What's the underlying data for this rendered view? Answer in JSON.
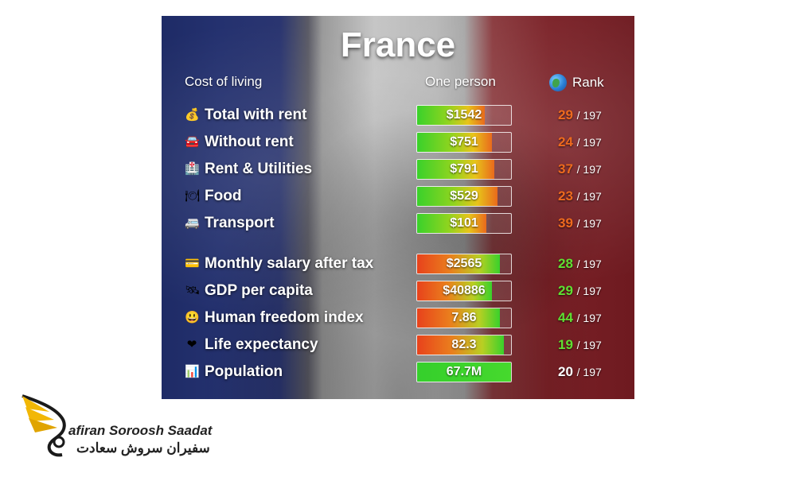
{
  "title": "France",
  "headers": {
    "cost": "Cost of living",
    "one_person": "One person",
    "rank": "Rank"
  },
  "colors": {
    "rank_bad": "#ee6a1e",
    "rank_good": "#5fe032",
    "rank_neutral": "#ffffff"
  },
  "rows": [
    {
      "icon": "money-bag-icon",
      "glyph": "💰",
      "label": "Total with rent",
      "value": "$1542",
      "fill": 0.72,
      "bar": "cost",
      "rank": "29",
      "total": "/ 197",
      "rank_tone": "bad"
    },
    {
      "icon": "car-icon",
      "glyph": "🚘",
      "label": "Without rent",
      "value": "$751",
      "fill": 0.8,
      "bar": "cost",
      "rank": "24",
      "total": "/ 197",
      "rank_tone": "bad"
    },
    {
      "icon": "building-icon",
      "glyph": "🏥",
      "label": "Rent & Utilities",
      "value": "$791",
      "fill": 0.82,
      "bar": "cost",
      "rank": "37",
      "total": "/ 197",
      "rank_tone": "bad"
    },
    {
      "icon": "plate-icon",
      "glyph": "🍽",
      "label": "Food",
      "value": "$529",
      "fill": 0.86,
      "bar": "cost",
      "rank": "23",
      "total": "/ 197",
      "rank_tone": "bad"
    },
    {
      "icon": "bus-icon",
      "glyph": "🚐",
      "label": "Transport",
      "value": "$101",
      "fill": 0.74,
      "bar": "cost",
      "rank": "39",
      "total": "/ 197",
      "rank_tone": "bad"
    },
    {
      "icon": "credit-card-icon",
      "glyph": "💳",
      "label": "Monthly salary after tax",
      "value": "$2565",
      "fill": 0.88,
      "bar": "good",
      "rank": "28",
      "total": "/ 197",
      "rank_tone": "good"
    },
    {
      "icon": "satellite-icon",
      "glyph": "🛰",
      "label": "GDP per capita",
      "value": "$40886",
      "fill": 0.8,
      "bar": "good",
      "rank": "29",
      "total": "/ 197",
      "rank_tone": "good"
    },
    {
      "icon": "smiley-icon",
      "glyph": "😃",
      "label": "Human freedom index",
      "value": "7.86",
      "fill": 0.88,
      "bar": "good",
      "rank": "44",
      "total": "/ 197",
      "rank_tone": "good"
    },
    {
      "icon": "heart-icon",
      "glyph": "❤",
      "label": "Life expectancy",
      "value": "82.3",
      "fill": 0.92,
      "bar": "good",
      "rank": "19",
      "total": "/ 197",
      "rank_tone": "good"
    },
    {
      "icon": "bar-chart-icon",
      "glyph": "📊",
      "label": "Population",
      "value": "67.7M",
      "fill": 1.0,
      "bar": "full",
      "rank": "20",
      "total": "/ 197",
      "rank_tone": "neutral"
    }
  ],
  "brand": {
    "name_en": "afiran Soroosh Saadat",
    "name_fa": "سفیران سروش سعادت"
  }
}
